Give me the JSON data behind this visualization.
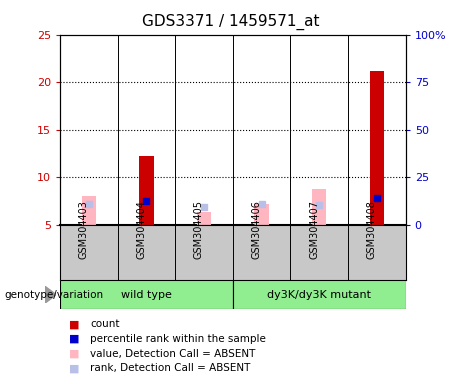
{
  "title": "GDS3371 / 1459571_at",
  "samples": [
    "GSM304403",
    "GSM304404",
    "GSM304405",
    "GSM304406",
    "GSM304407",
    "GSM304408"
  ],
  "ylim_left": [
    5,
    25
  ],
  "ylim_right": [
    0,
    100
  ],
  "yticks_left": [
    5,
    10,
    15,
    20,
    25
  ],
  "yticks_right": [
    0,
    25,
    50,
    75,
    100
  ],
  "left_color": "#cc0000",
  "right_color": "#0000cc",
  "red_bars": [
    null,
    12.2,
    null,
    null,
    null,
    21.2
  ],
  "blue_squares": [
    null,
    12.5,
    null,
    null,
    null,
    14.0
  ],
  "pink_bars": [
    8.0,
    null,
    6.3,
    7.2,
    8.7,
    null
  ],
  "lavender_squares": [
    10.6,
    null,
    9.5,
    10.8,
    10.2,
    null
  ],
  "bar_width": 0.25,
  "legend_colors": [
    "#cc0000",
    "#0000cc",
    "#ffb6c1",
    "#b8c0e8"
  ],
  "legend_labels": [
    "count",
    "percentile rank within the sample",
    "value, Detection Call = ABSENT",
    "rank, Detection Call = ABSENT"
  ],
  "genotype_label": "genotype/variation",
  "sample_bg": "#c8c8c8",
  "group_green": "#90ee90",
  "title_fontsize": 11,
  "pink_color": "#ffb6c1",
  "lavender_color": "#b8c0e8"
}
